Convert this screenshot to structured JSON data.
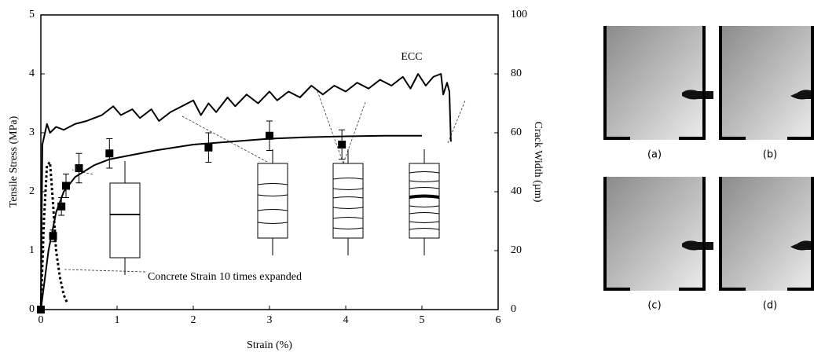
{
  "chart_data": {
    "type": "line",
    "xlabel": "Strain (%)",
    "ylabel": "Tensile Stress (MPa)",
    "y2label": "Crack Width (µm)",
    "xlim": [
      0,
      6
    ],
    "xticks": [
      0,
      1,
      2,
      3,
      4,
      5,
      6
    ],
    "ylim": [
      0,
      5
    ],
    "yticks": [
      0,
      1,
      2,
      3,
      4,
      5
    ],
    "y2lim": [
      0,
      100
    ],
    "y2ticks": [
      0,
      20,
      40,
      60,
      80,
      100
    ],
    "annotations": [
      "ECC",
      "Concrete Strain 10 times expanded"
    ],
    "series": [
      {
        "color": "#000000",
        "style": "solid",
        "x": [
          0,
          0.02,
          0.08,
          0.12,
          0.2,
          0.3,
          0.45,
          0.6,
          0.8,
          0.95,
          1.05,
          1.2,
          1.3,
          1.45,
          1.55,
          1.7,
          1.85,
          2.0,
          2.1,
          2.2,
          2.3,
          2.45,
          2.55,
          2.7,
          2.85,
          3.0,
          3.1,
          3.25,
          3.4,
          3.55,
          3.7,
          3.85,
          4.0,
          4.15,
          4.3,
          4.45,
          4.6,
          4.75,
          4.85,
          4.95,
          5.05,
          5.15,
          5.25,
          5.28,
          5.33,
          5.36,
          5.38
        ],
        "values": [
          0,
          2.8,
          3.15,
          3.0,
          3.1,
          3.05,
          3.15,
          3.2,
          3.3,
          3.45,
          3.3,
          3.4,
          3.25,
          3.4,
          3.2,
          3.35,
          3.45,
          3.55,
          3.3,
          3.5,
          3.35,
          3.6,
          3.45,
          3.65,
          3.5,
          3.7,
          3.55,
          3.7,
          3.6,
          3.8,
          3.65,
          3.8,
          3.7,
          3.85,
          3.75,
          3.9,
          3.8,
          3.95,
          3.75,
          4.0,
          3.8,
          3.95,
          4.0,
          3.65,
          3.85,
          3.7,
          2.85
        ]
      },
      {
        "color": "#000000",
        "style": "dotted",
        "x": [
          0,
          0.04,
          0.08,
          0.12,
          0.16,
          0.2,
          0.25,
          0.3,
          0.35
        ],
        "values": [
          0,
          1.5,
          2.45,
          2.5,
          1.8,
          1.0,
          0.55,
          0.25,
          0.1
        ]
      },
      {
        "color": "#000000",
        "style": "solid",
        "axis": "y2",
        "x": [
          0,
          0.1,
          0.2,
          0.3,
          0.45,
          0.7,
          0.9,
          1.5,
          2.0,
          2.5,
          3.0,
          3.5,
          4.0,
          4.5,
          5.0
        ],
        "values": [
          0,
          20,
          33,
          40,
          45,
          49,
          51,
          54,
          56,
          57,
          58,
          58.5,
          58.8,
          59,
          59
        ]
      },
      {
        "color": "#000000",
        "style": "markers",
        "axis": "y2",
        "x": [
          0,
          0.16,
          0.27,
          0.33,
          0.5,
          0.9,
          2.2,
          3.0,
          3.95
        ],
        "values": [
          0,
          25,
          35,
          42,
          48,
          53,
          55,
          59,
          56
        ],
        "errors": [
          0,
          2,
          3,
          4,
          5,
          5,
          5,
          5,
          5
        ]
      }
    ]
  },
  "figure_panels": {
    "labels": [
      "(a)",
      "(b)",
      "(c)",
      "(d)"
    ]
  }
}
